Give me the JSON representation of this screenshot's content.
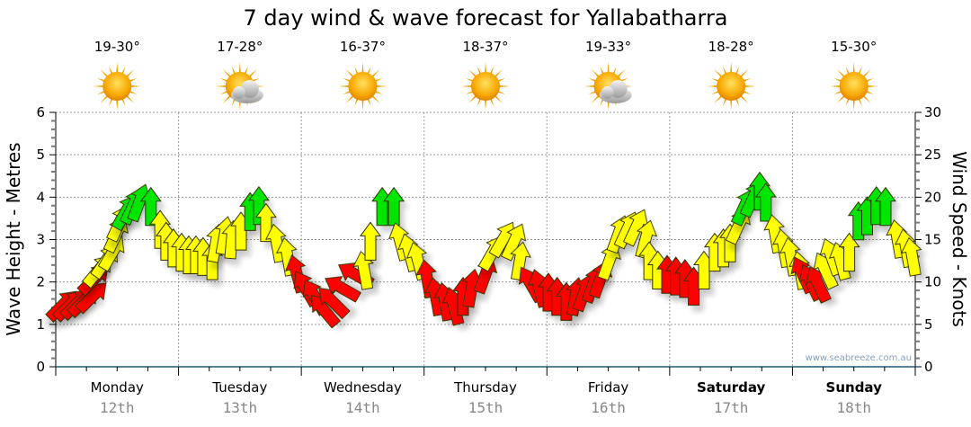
{
  "chart_data": {
    "type": "scatter",
    "title": "7 day wind & wave forecast for Yallabatharra",
    "ylabel": "Wave Height - Metres",
    "y2label": "Wind Speed - Knots",
    "ylim": [
      0,
      6
    ],
    "y2lim": [
      0,
      30
    ],
    "yticks": [
      "0",
      "1",
      "2",
      "3",
      "4",
      "5",
      "6"
    ],
    "y2ticks": [
      "0",
      "5",
      "10",
      "15",
      "20",
      "25",
      "30"
    ],
    "grid": true,
    "days": [
      {
        "name": "Monday",
        "date": "12th",
        "temp": "19-30°",
        "icon": "sun-icon",
        "bold": false
      },
      {
        "name": "Tuesday",
        "date": "13th",
        "temp": "17-28°",
        "icon": "partly-cloudy-icon",
        "bold": false
      },
      {
        "name": "Wednesday",
        "date": "14th",
        "temp": "16-37°",
        "icon": "sun-icon",
        "bold": false
      },
      {
        "name": "Thursday",
        "date": "15th",
        "temp": "18-37°",
        "icon": "sun-icon",
        "bold": false
      },
      {
        "name": "Friday",
        "date": "16th",
        "temp": "19-33°",
        "icon": "partly-cloudy-icon",
        "bold": false
      },
      {
        "name": "Saturday",
        "date": "17th",
        "temp": "18-28°",
        "icon": "sun-icon",
        "bold": true
      },
      {
        "name": "Sunday",
        "date": "18th",
        "temp": "15-30°",
        "icon": "sun-icon",
        "bold": true
      }
    ],
    "arrow_fields": [
      "hour_from_monday_0000",
      "wind_knots",
      "direction_deg_rotation",
      "color_key"
    ],
    "colors": {
      "r": "#ff0000",
      "y": "#ffff00",
      "g": "#00e600",
      "outline": "#333300",
      "axis": "#1f5a80"
    },
    "arrows": [
      [
        1.4,
        7.3,
        45,
        "r"
      ],
      [
        2.8,
        7.3,
        45,
        "r"
      ],
      [
        4.2,
        7.5,
        45,
        "r"
      ],
      [
        5.6,
        7.8,
        45,
        "r"
      ],
      [
        7.2,
        8.3,
        45,
        "r"
      ],
      [
        7.6,
        10.4,
        45,
        "r"
      ],
      [
        8.4,
        11.4,
        40,
        "y"
      ],
      [
        9.8,
        12.5,
        35,
        "y"
      ],
      [
        11.1,
        13.5,
        30,
        "y"
      ],
      [
        11.9,
        15.7,
        25,
        "y"
      ],
      [
        12.5,
        17.0,
        25,
        "y"
      ],
      [
        13.7,
        18.3,
        30,
        "g"
      ],
      [
        15.1,
        19.0,
        25,
        "g"
      ],
      [
        16.3,
        19.4,
        20,
        "g"
      ],
      [
        18.6,
        18.9,
        0,
        "g"
      ],
      [
        20.4,
        16.2,
        0,
        "y"
      ],
      [
        21.6,
        14.8,
        0,
        "y"
      ],
      [
        23.0,
        14.0,
        0,
        "y"
      ],
      [
        24.6,
        13.5,
        0,
        "y"
      ],
      [
        26.0,
        13.2,
        0,
        "y"
      ],
      [
        27.4,
        13.2,
        0,
        "y"
      ],
      [
        28.8,
        13.0,
        0,
        "y"
      ],
      [
        30.6,
        12.5,
        0,
        "y"
      ],
      [
        31.3,
        14.6,
        10,
        "y"
      ],
      [
        33.0,
        15.5,
        10,
        "y"
      ],
      [
        34.4,
        15.0,
        5,
        "y"
      ],
      [
        36.2,
        16.0,
        0,
        "y"
      ],
      [
        38.0,
        18.3,
        0,
        "g"
      ],
      [
        39.7,
        19.0,
        0,
        "g"
      ],
      [
        41.1,
        17.0,
        0,
        "y"
      ],
      [
        43.2,
        14.6,
        -10,
        "y"
      ],
      [
        45.3,
        13.0,
        -10,
        "y"
      ],
      [
        47.1,
        11.0,
        -15,
        "r"
      ],
      [
        48.8,
        9.3,
        -30,
        "r"
      ],
      [
        50.6,
        8.3,
        -30,
        "r"
      ],
      [
        52.4,
        6.7,
        -40,
        "r"
      ],
      [
        54.1,
        7.7,
        -45,
        "r"
      ],
      [
        55.9,
        9.3,
        -60,
        "r"
      ],
      [
        58.5,
        10.9,
        -60,
        "r"
      ],
      [
        60.3,
        11.4,
        -10,
        "y"
      ],
      [
        61.5,
        14.8,
        0,
        "y"
      ],
      [
        63.8,
        18.9,
        0,
        "g"
      ],
      [
        66.1,
        18.9,
        0,
        "g"
      ],
      [
        67.3,
        14.8,
        -15,
        "y"
      ],
      [
        69.1,
        13.5,
        -15,
        "y"
      ],
      [
        70.8,
        12.5,
        -15,
        "y"
      ],
      [
        72.6,
        10.4,
        -10,
        "r"
      ],
      [
        74.3,
        8.3,
        -10,
        "r"
      ],
      [
        76.1,
        7.7,
        -10,
        "r"
      ],
      [
        77.8,
        7.2,
        -15,
        "r"
      ],
      [
        79.6,
        8.3,
        0,
        "r"
      ],
      [
        81.3,
        9.3,
        10,
        "r"
      ],
      [
        84.0,
        10.9,
        20,
        "r"
      ],
      [
        85.4,
        13.5,
        30,
        "y"
      ],
      [
        87.5,
        15.1,
        30,
        "y"
      ],
      [
        89.6,
        14.8,
        25,
        "y"
      ],
      [
        90.7,
        12.5,
        10,
        "y"
      ],
      [
        92.8,
        9.8,
        -30,
        "r"
      ],
      [
        94.5,
        9.3,
        -15,
        "r"
      ],
      [
        96.3,
        8.8,
        0,
        "r"
      ],
      [
        98.0,
        8.3,
        0,
        "r"
      ],
      [
        99.8,
        7.7,
        0,
        "r"
      ],
      [
        101.6,
        8.3,
        10,
        "r"
      ],
      [
        103.3,
        8.8,
        20,
        "r"
      ],
      [
        105.1,
        9.8,
        20,
        "r"
      ],
      [
        106.5,
        10.4,
        20,
        "r"
      ],
      [
        108.2,
        12.5,
        20,
        "y"
      ],
      [
        110.0,
        15.7,
        20,
        "y"
      ],
      [
        111.7,
        16.2,
        25,
        "y"
      ],
      [
        113.5,
        16.5,
        25,
        "y"
      ],
      [
        115.3,
        15.1,
        15,
        "y"
      ],
      [
        116.0,
        12.5,
        0,
        "y"
      ],
      [
        117.7,
        11.4,
        0,
        "y"
      ],
      [
        119.5,
        10.9,
        0,
        "r"
      ],
      [
        121.2,
        10.7,
        0,
        "r"
      ],
      [
        123.0,
        10.4,
        0,
        "r"
      ],
      [
        124.7,
        9.5,
        0,
        "r"
      ],
      [
        126.7,
        11.4,
        0,
        "y"
      ],
      [
        128.8,
        13.5,
        0,
        "y"
      ],
      [
        130.5,
        14.0,
        0,
        "y"
      ],
      [
        131.8,
        14.6,
        0,
        "y"
      ],
      [
        133.5,
        16.7,
        25,
        "y"
      ],
      [
        134.6,
        18.9,
        25,
        "g"
      ],
      [
        136.3,
        19.9,
        25,
        "g"
      ],
      [
        137.6,
        20.7,
        0,
        "g"
      ],
      [
        138.8,
        19.4,
        0,
        "g"
      ],
      [
        140.6,
        15.7,
        -10,
        "y"
      ],
      [
        142.3,
        14.0,
        -10,
        "y"
      ],
      [
        143.7,
        13.0,
        -10,
        "y"
      ],
      [
        145.5,
        11.4,
        -10,
        "y"
      ],
      [
        146.0,
        10.9,
        -25,
        "r"
      ],
      [
        147.6,
        10.0,
        -25,
        "r"
      ],
      [
        149.0,
        9.8,
        -25,
        "r"
      ],
      [
        150.4,
        11.4,
        -25,
        "y"
      ],
      [
        151.6,
        13.0,
        -20,
        "y"
      ],
      [
        153.4,
        12.5,
        -15,
        "y"
      ],
      [
        155.1,
        13.5,
        0,
        "y"
      ],
      [
        156.9,
        17.2,
        0,
        "g"
      ],
      [
        158.6,
        17.8,
        0,
        "g"
      ],
      [
        160.4,
        19.0,
        0,
        "g"
      ],
      [
        162.2,
        18.9,
        0,
        "g"
      ],
      [
        164.5,
        15.1,
        -10,
        "y"
      ],
      [
        166.2,
        14.0,
        -10,
        "y"
      ],
      [
        167.4,
        13.0,
        -10,
        "y"
      ]
    ],
    "watermark": "www.seabreeze.com.au"
  }
}
